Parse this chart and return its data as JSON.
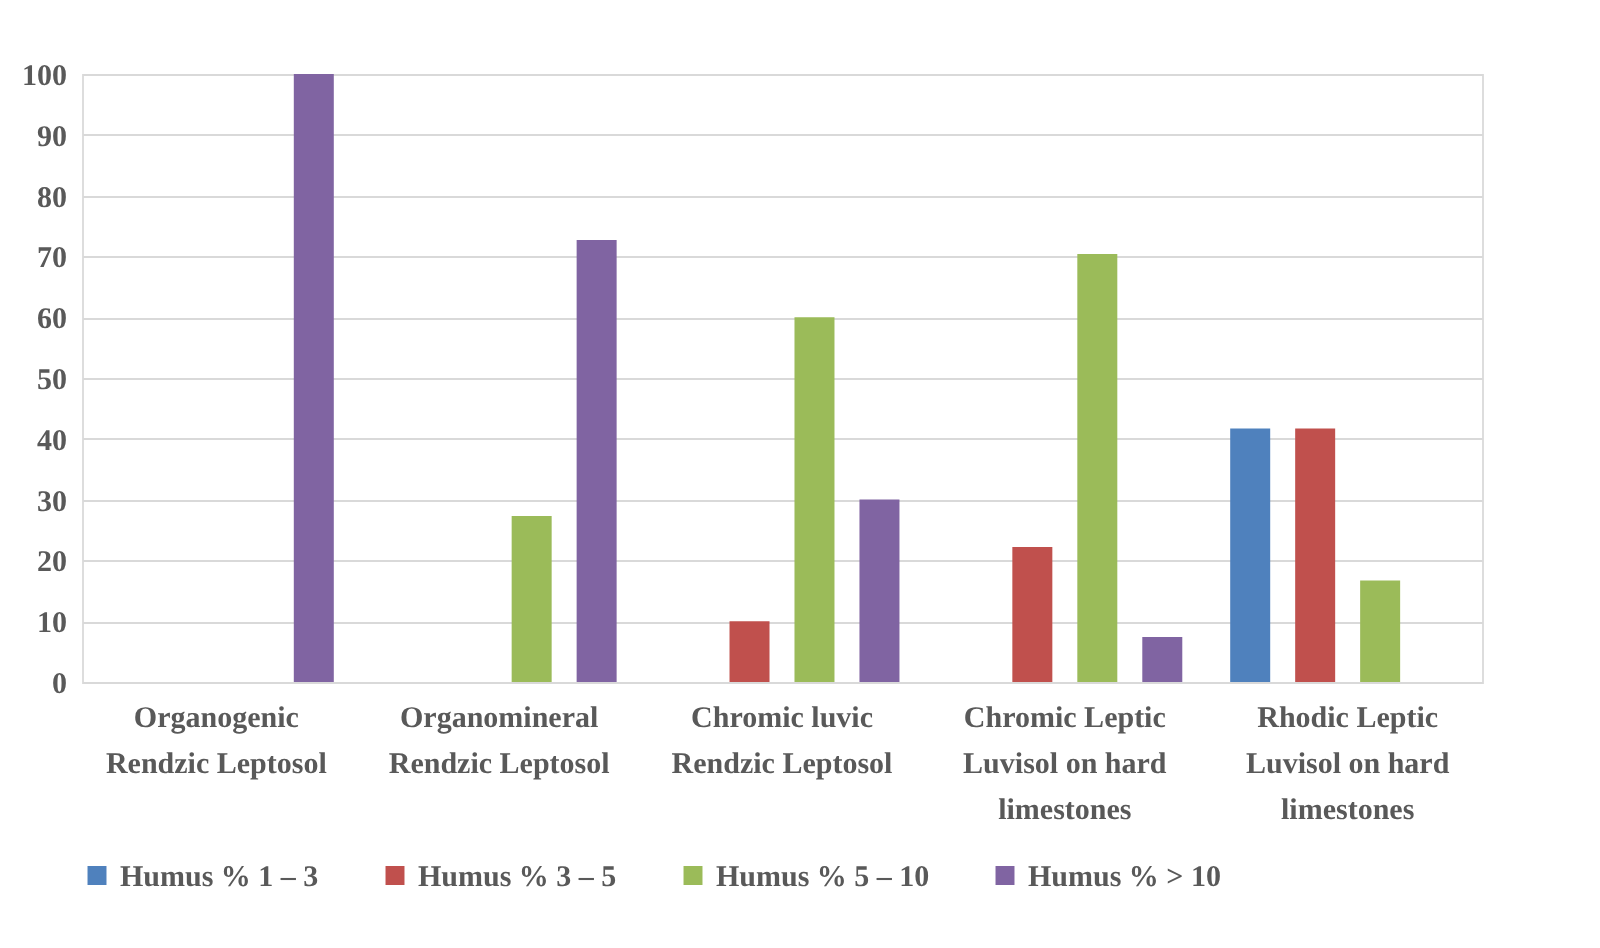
{
  "chart_data": {
    "type": "bar",
    "categories": [
      "Organogenic Rendzic Leptosol",
      "Organomineral Rendzic Leptosol",
      "Chromic luvic Rendzic Leptosol",
      "Chromic Leptic Luvisol on hard limestones",
      "Rhodic Leptic Luvisol on hard limestones"
    ],
    "series": [
      {
        "name": "Humus % 1 – 3",
        "color": "#4f81bd",
        "values": [
          null,
          null,
          null,
          null,
          41.7
        ]
      },
      {
        "name": "Humus % 3 – 5",
        "color": "#c0504d",
        "values": [
          null,
          null,
          10,
          22.2,
          41.7
        ]
      },
      {
        "name": "Humus % 5 – 10",
        "color": "#9bbb59",
        "values": [
          null,
          27.3,
          60,
          70.4,
          16.7
        ]
      },
      {
        "name": "Humus % > 10",
        "color": "#8064a2",
        "values": [
          100,
          72.7,
          30,
          7.4,
          null
        ]
      }
    ],
    "ylim": [
      0,
      100
    ],
    "yticks": [
      0,
      10,
      20,
      30,
      40,
      50,
      60,
      70,
      80,
      90,
      100
    ],
    "grid": "y",
    "legend": "bottom"
  }
}
